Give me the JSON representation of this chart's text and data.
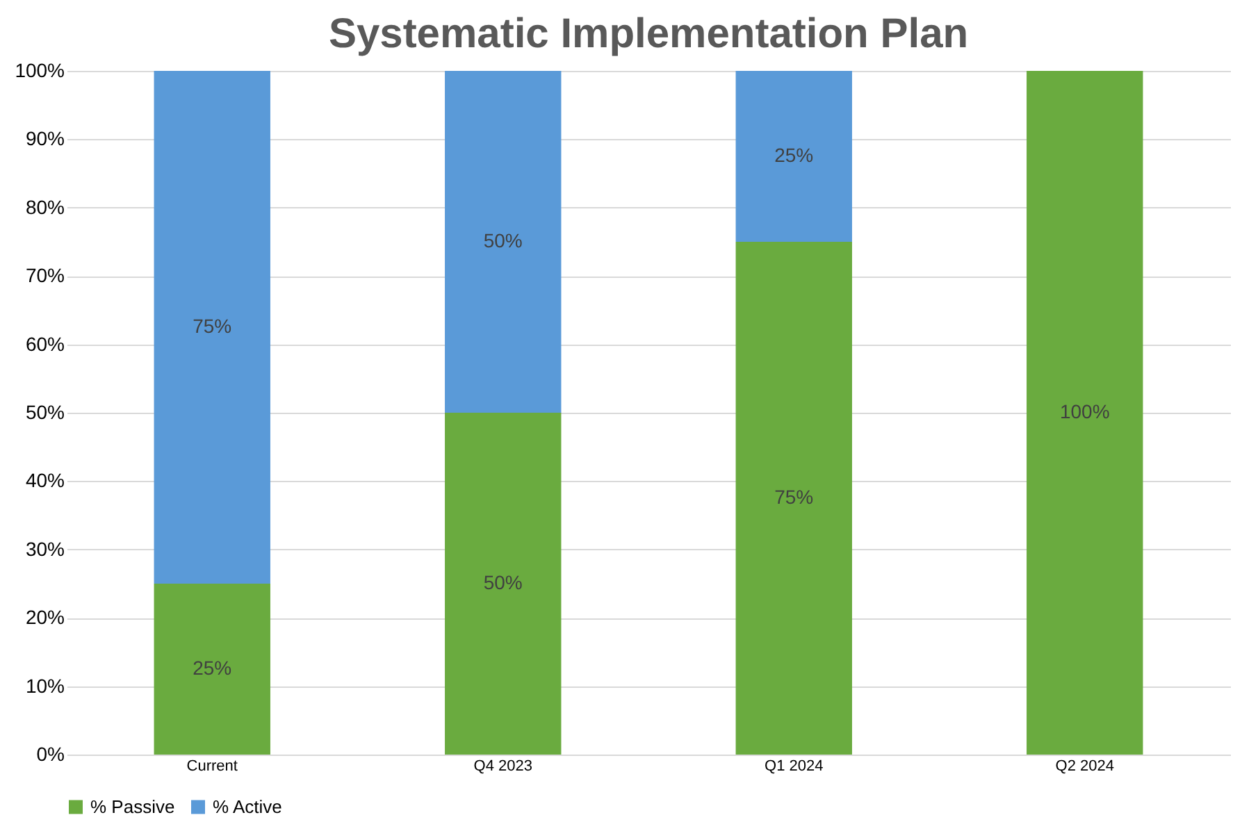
{
  "chart_data": {
    "type": "bar",
    "title": "Systematic Implementation Plan",
    "stacked": true,
    "categories": [
      "Current",
      "Q4 2023",
      "Q1 2024",
      "Q2 2024"
    ],
    "series": [
      {
        "name": "% Passive",
        "color": "#6aab3f",
        "values": [
          25,
          50,
          75,
          100
        ],
        "value_labels": [
          "25%",
          "50%",
          "75%",
          "100%"
        ]
      },
      {
        "name": "% Active",
        "color": "#5a9ad8",
        "values": [
          75,
          50,
          25,
          0
        ],
        "value_labels": [
          "75%",
          "50%",
          "25%",
          null
        ]
      }
    ],
    "ylim": [
      0,
      100
    ],
    "yticks": [
      {
        "value": 0,
        "label": "0%"
      },
      {
        "value": 10,
        "label": "10%"
      },
      {
        "value": 20,
        "label": "20%"
      },
      {
        "value": 30,
        "label": "30%"
      },
      {
        "value": 40,
        "label": "40%"
      },
      {
        "value": 50,
        "label": "50%"
      },
      {
        "value": 60,
        "label": "60%"
      },
      {
        "value": 70,
        "label": "70%"
      },
      {
        "value": 80,
        "label": "80%"
      },
      {
        "value": 90,
        "label": "90%"
      },
      {
        "value": 100,
        "label": "100%"
      }
    ],
    "grid": "y",
    "legend": "bottom"
  }
}
